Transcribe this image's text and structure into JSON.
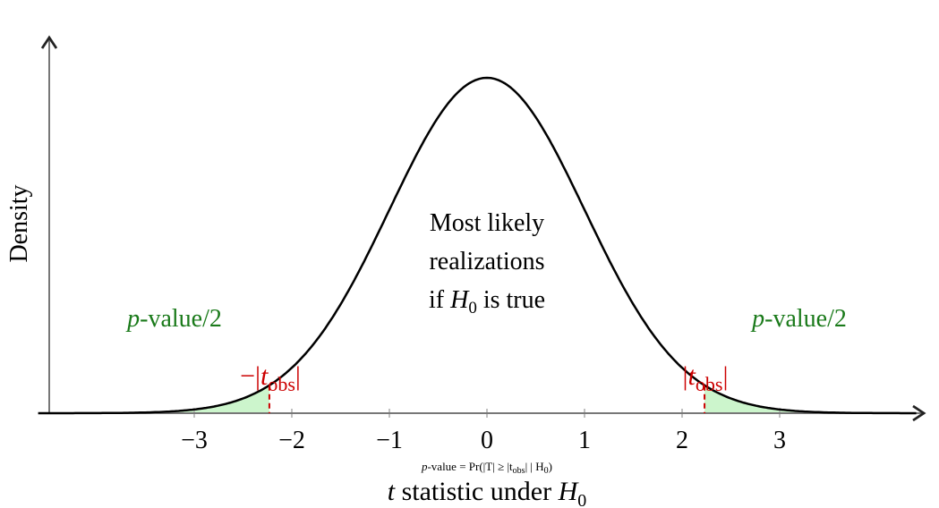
{
  "chart_data": {
    "type": "line",
    "distribution": "standard normal density under H0",
    "xlim": [
      -4.6,
      4.4
    ],
    "x_ticks": [
      -3,
      -2,
      -1,
      0,
      1,
      2,
      3
    ],
    "x_tick_labels": [
      "−3",
      "−2",
      "−1",
      "0",
      "1",
      "2",
      "3"
    ],
    "t_obs": 2.23,
    "xlabel": "t statistic under H0",
    "xlabel_parts": {
      "t": "t",
      "mid": " statistic under ",
      "H": "H",
      "sub": "0"
    },
    "ylabel": "Density",
    "formula": {
      "p": "p",
      "rest": "-value = Pr(|T| ≥ |t",
      "obs": "obs",
      "tail": "| | H",
      "sub": "0",
      "close": ")"
    },
    "annotations": {
      "center": [
        "Most likely",
        "realizations",
        "if H0 is true"
      ],
      "center_line3": {
        "a": "if ",
        "H": "H",
        "sub": "0",
        "b": " is true"
      },
      "left_tail": {
        "p": "p",
        "rest": "-value/2"
      },
      "right_tail": {
        "p": "p",
        "rest": "-value/2"
      },
      "neg_tobs": {
        "minus": "−|",
        "t": "t",
        "obs": "obs",
        "bar": "|"
      },
      "pos_tobs": {
        "bar1": "|",
        "t": "t",
        "obs": "obs",
        "bar2": "|"
      }
    },
    "colors": {
      "curve": "#000000",
      "fill": "#ccf5cc",
      "tobs": "#cc0000",
      "tail_text": "#1a7a1a",
      "axis": "#555555"
    }
  }
}
